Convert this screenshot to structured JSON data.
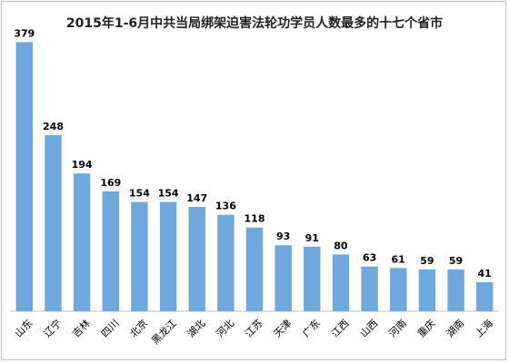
{
  "chart_data": {
    "type": "bar",
    "title": "2015年1-6月中共当局绑架迫害法轮功学员人数最多的十七个省市",
    "xlabel": "",
    "ylabel": "",
    "categories": [
      "山东",
      "辽宁",
      "吉林",
      "四川",
      "北京",
      "黑龙江",
      "湖北",
      "河北",
      "江苏",
      "天津",
      "广东",
      "江西",
      "山西",
      "河南",
      "重庆",
      "湖南",
      "上海"
    ],
    "values": [
      379,
      248,
      194,
      169,
      154,
      154,
      147,
      136,
      118,
      93,
      91,
      80,
      63,
      61,
      59,
      59,
      41
    ],
    "ylim": [
      0,
      400
    ],
    "grid": false,
    "legend": "none",
    "bar_color": "#6fa8dc",
    "show_data_labels": true
  }
}
